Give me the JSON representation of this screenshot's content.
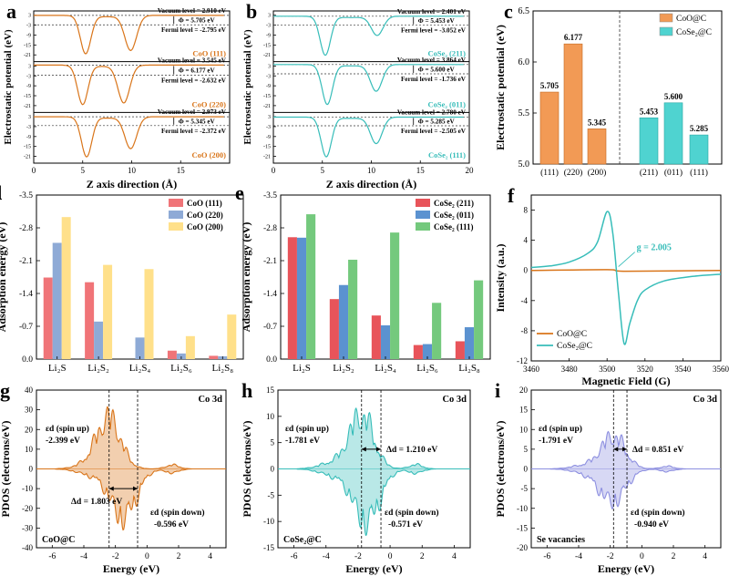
{
  "figure_panels": [
    "a",
    "b",
    "c",
    "d",
    "e",
    "f",
    "g",
    "h",
    "i"
  ],
  "colors": {
    "coo": "#d9751a",
    "cose2": "#37bdb9",
    "coo_bar": "#f29a55",
    "cose2_bar": "#4fd3d0",
    "red_bar": "#f07478",
    "blue_bar": "#8eaad6",
    "yellow_bar": "#ffe08a",
    "cose2_red": "#e8545a",
    "cose2_blue": "#5b92d0",
    "cose2_green": "#74c97d",
    "vac": "#8d8fe0"
  },
  "chart_data": [
    {
      "panel": "a",
      "type": "line",
      "xlabel": "Z axis direction (Å)",
      "ylabel": "Electrostatic potential (eV)",
      "xlim": [
        0,
        20
      ],
      "xticks": [
        "0",
        "5",
        "10",
        "15"
      ],
      "yticks": [
        "3",
        "-3",
        "-9",
        "-15",
        "-21"
      ],
      "series": [
        {
          "name": "CoO (111)",
          "vacuum_text": "Vacuum level = 2.910 eV",
          "phi_text": "Φ = 5.705 eV",
          "fermi_text": "Fermi level = -2.795 eV",
          "vacuum": 2.91,
          "fermi": -2.795,
          "well1": [
            5.3,
            -20
          ],
          "well2": [
            9.9,
            -18
          ]
        },
        {
          "name": "CoO (220)",
          "vacuum_text": "Vacuum level = 3.545 eV",
          "phi_text": "Φ = 6.177 eV",
          "fermi_text": "Fermi level = -2.632 eV",
          "vacuum": 3.545,
          "fermi": -2.632,
          "well1": [
            5.0,
            -20
          ],
          "well2": [
            9.2,
            -19
          ]
        },
        {
          "name": "CoO (200)",
          "vacuum_text": "Vacuum level = 2.973 eV",
          "phi_text": "Φ = 5.345 eV",
          "fermi_text": "Fermi level = -2.372 eV",
          "vacuum": 2.973,
          "fermi": -2.372,
          "well1": [
            5.4,
            -21
          ],
          "well2": [
            9.9,
            -16
          ]
        }
      ]
    },
    {
      "panel": "b",
      "type": "line",
      "xlabel": "Z axis direction (Å)",
      "ylabel": "Electrostatic potential (eV)",
      "xlim": [
        0,
        20
      ],
      "xticks": [
        "0",
        "5",
        "10",
        "15",
        "20"
      ],
      "yticks": [
        "3",
        "-3",
        "-9",
        "-15",
        "-21"
      ],
      "series": [
        {
          "name": "CoSe₂ (211)",
          "vacuum_text": "Vacuum level = 2.401 eV",
          "phi_text": "Φ = 5.453 eV",
          "fermi_text": "Fermi level = -3.052 eV",
          "vacuum": 2.401,
          "fermi": -3.052,
          "well1": [
            5.3,
            -21
          ],
          "well2": [
            10.6,
            -9
          ]
        },
        {
          "name": "CoSe₂ (011)",
          "vacuum_text": "Vacuum level = 3.864 eV",
          "phi_text": "Φ = 5.600 eV",
          "fermi_text": "Fermi level = -1.736 eV",
          "vacuum": 3.864,
          "fermi": -1.736,
          "well1": [
            5.5,
            -20
          ],
          "well2": [
            10.5,
            -12
          ]
        },
        {
          "name": "CoSe₂ (111)",
          "vacuum_text": "Vacuum level = 2.780 eV",
          "phi_text": "Φ = 5.285 eV",
          "fermi_text": "Fermi level = -2.505 eV",
          "vacuum": 2.78,
          "fermi": -2.505,
          "well1": [
            5.4,
            -21
          ],
          "well2": [
            10.5,
            -13
          ]
        }
      ]
    },
    {
      "panel": "c",
      "type": "bar",
      "ylabel": "Electrostatic potential (eV)",
      "ylim": [
        5.0,
        6.5
      ],
      "yticks": [
        "5.0",
        "5.5",
        "6.0",
        "6.5"
      ],
      "legend": [
        "CoO@C",
        "CoSe₂@C"
      ],
      "legend_position": "top-right",
      "groups": [
        {
          "name": "CoO@C",
          "categories": [
            "(111)",
            "(220)",
            "(200)"
          ],
          "values": [
            5.705,
            6.177,
            5.345
          ],
          "labels": [
            "5.705",
            "6.177",
            "5.345"
          ]
        },
        {
          "name": "CoSe₂@C",
          "categories": [
            "(211)",
            "(011)",
            "(111)"
          ],
          "values": [
            5.453,
            5.6,
            5.285
          ],
          "labels": [
            "5.453",
            "5.600",
            "5.285"
          ]
        }
      ]
    },
    {
      "panel": "d",
      "type": "bar",
      "ylabel": "Adsorption energy (eV)",
      "ylim": [
        0,
        -3.5
      ],
      "yticks": [
        "0.0",
        "-0.7",
        "-1.4",
        "-2.1",
        "-2.8",
        "-3.5"
      ],
      "categories": [
        "Li₂S",
        "Li₂S₂",
        "Li₂S₄",
        "Li₂S₆",
        "Li₂S₈"
      ],
      "legend_position": "top-right",
      "series": [
        {
          "name": "CoO (111)",
          "values": [
            -1.74,
            -1.64,
            0.0,
            -0.18,
            -0.07
          ]
        },
        {
          "name": "CoO (220)",
          "values": [
            -2.48,
            -0.8,
            -0.46,
            -0.12,
            -0.06
          ]
        },
        {
          "name": "CoO (200)",
          "values": [
            -3.03,
            -2.01,
            -1.92,
            -0.49,
            -0.95
          ]
        }
      ]
    },
    {
      "panel": "e",
      "type": "bar",
      "ylabel": "Adsorption energy (eV)",
      "ylim": [
        0,
        -3.5
      ],
      "yticks": [
        "0.0",
        "-0.7",
        "-1.4",
        "-2.1",
        "-2.8",
        "-3.5"
      ],
      "categories": [
        "Li₂S",
        "Li₂S₂",
        "Li₂S₄",
        "Li₂S₆",
        "Li₂S₈"
      ],
      "legend_position": "top-right",
      "series": [
        {
          "name": "CoSe₂ (211)",
          "values": [
            -2.6,
            -1.28,
            -0.93,
            -0.3,
            -0.38
          ]
        },
        {
          "name": "CoSe₂ (011)",
          "values": [
            -2.59,
            -1.58,
            -0.72,
            -0.32,
            -0.68
          ]
        },
        {
          "name": "CoSe₂ (111)",
          "values": [
            -3.09,
            -2.12,
            -2.7,
            -1.2,
            -1.68
          ]
        }
      ]
    },
    {
      "panel": "f",
      "type": "line",
      "xlabel": "Magnetic Field (G)",
      "ylabel": "Intensity (a.u.)",
      "xlim": [
        3460,
        3560
      ],
      "ylim": [
        -12,
        10
      ],
      "xticks": [
        "3460",
        "3480",
        "3500",
        "3520",
        "3540",
        "3560"
      ],
      "yticks": [
        "8",
        "4",
        "0",
        "-4",
        "-8",
        "-12"
      ],
      "annotation": "g = 2.005",
      "legend_position": "bottom-left",
      "series": [
        {
          "name": "CoO@C",
          "x": [
            3460,
            3500,
            3510,
            3560
          ],
          "y": [
            0,
            0.1,
            -0.1,
            0
          ]
        },
        {
          "name": "CoSe₂@C",
          "x": [
            3460,
            3470,
            3480,
            3490,
            3495,
            3500,
            3503,
            3506,
            3509,
            3512,
            3516,
            3520,
            3530,
            3545,
            3560
          ],
          "y": [
            0.4,
            0.6,
            1.1,
            2.3,
            3.8,
            7.8,
            5.0,
            -3.0,
            -9.7,
            -7.0,
            -4.0,
            -2.6,
            -1.4,
            -0.8,
            -0.5
          ]
        }
      ]
    },
    {
      "panel": "g",
      "type": "area",
      "xlabel": "Energy (eV)",
      "ylabel": "PDOS (electrons/eV)",
      "xlim": [
        -7,
        5
      ],
      "ylim": [
        -40,
        40
      ],
      "xticks": [
        "-6",
        "-4",
        "-2",
        "0",
        "2",
        "4"
      ],
      "yticks": [
        "40",
        "30",
        "20",
        "10",
        "0",
        "-10",
        "-20",
        "-30",
        "-40"
      ],
      "title": "Co 3d",
      "sample": "CoO@C",
      "up_text": "εd (spin up)",
      "up_value": "-2.399 eV",
      "down_text": "εd (spin down)",
      "down_value": "-0.596 eV",
      "delta_text": "Δd = 1.803 eV",
      "eps_up": -2.399,
      "eps_down": -0.596
    },
    {
      "panel": "h",
      "type": "area",
      "xlabel": "Energy (eV)",
      "ylabel": "PDOS (electrons/eV)",
      "xlim": [
        -7,
        5
      ],
      "ylim": [
        -15,
        15
      ],
      "xticks": [
        "-6",
        "-4",
        "-2",
        "0",
        "2",
        "4"
      ],
      "yticks": [
        "15",
        "10",
        "5",
        "0",
        "-5",
        "-10",
        "-15"
      ],
      "title": "Co 3d",
      "sample": "CoSe₂@C",
      "up_text": "εd (spin up)",
      "up_value": "-1.781 eV",
      "down_text": "εd (spin down)",
      "down_value": "-0.571 eV",
      "delta_text": "Δd = 1.210 eV",
      "eps_up": -1.781,
      "eps_down": -0.571
    },
    {
      "panel": "i",
      "type": "area",
      "xlabel": "Energy (eV)",
      "ylabel": "PDOS (electrons/eV)",
      "xlim": [
        -7,
        5
      ],
      "ylim": [
        -20,
        20
      ],
      "xticks": [
        "-6",
        "-4",
        "-2",
        "0",
        "2",
        "4"
      ],
      "yticks": [
        "20",
        "15",
        "10",
        "5",
        "0",
        "-5",
        "-10",
        "-15",
        "-20"
      ],
      "title": "Co 3d",
      "sample": "Se vacancies",
      "up_text": "εd (spin up)",
      "up_value": "-1.791 eV",
      "down_text": "εd (spin down)",
      "down_value": "-0.940 eV",
      "delta_text": "Δd = 0.851 eV",
      "eps_up": -1.791,
      "eps_down": -0.94
    }
  ]
}
